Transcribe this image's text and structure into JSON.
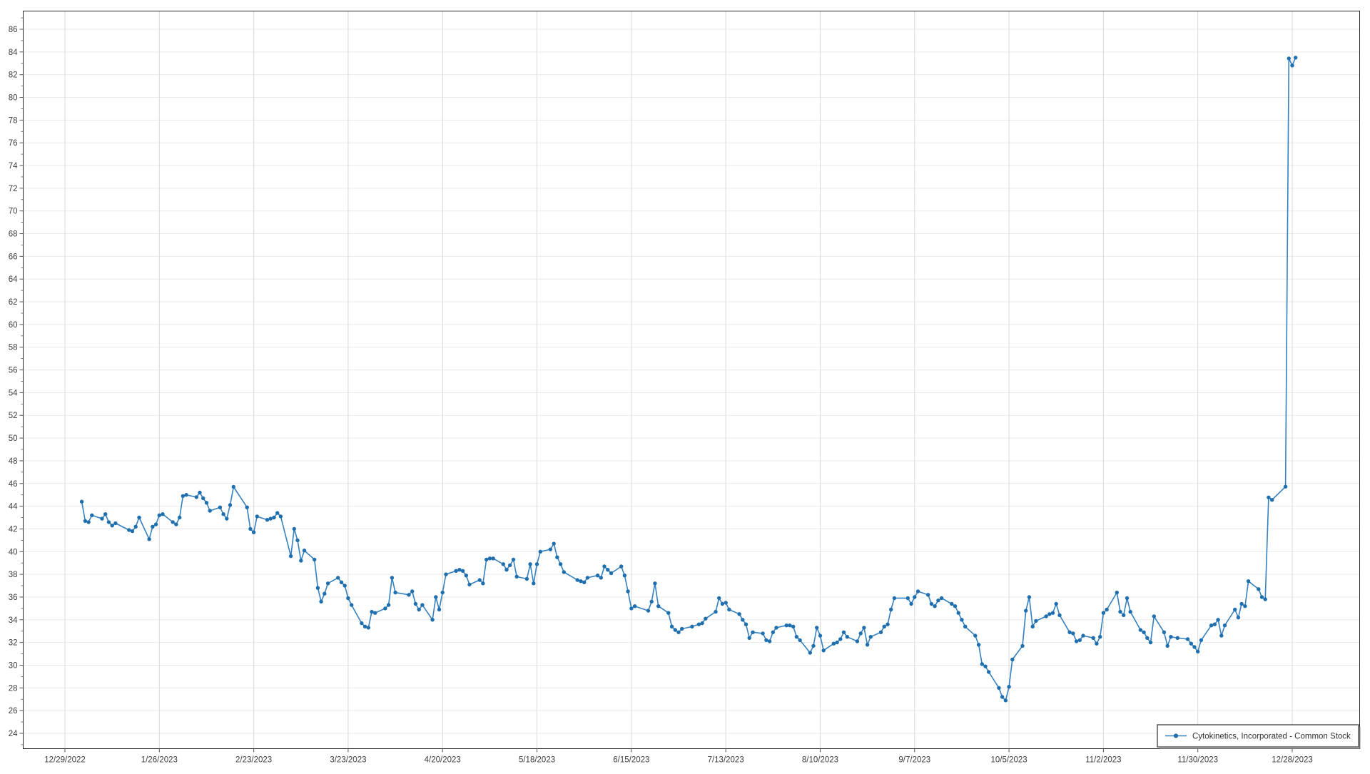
{
  "legend": {
    "label": "Cytokinetics, Incorporated - Common Stock"
  },
  "colors": {
    "line": "#3580bf",
    "marker": "#1f6fae",
    "grid_horizontal": "#e9e9e9",
    "grid_vertical": "#d9d9d9",
    "plot_border": "#262626",
    "tick_mark": "#555555",
    "tick_label": "#3d3d3d",
    "legend_border": "#58595b",
    "legend_background": "#ffffff"
  },
  "axes": {
    "y": {
      "tick_labels": [
        "24",
        "26",
        "28",
        "30",
        "32",
        "34",
        "36",
        "38",
        "40",
        "42",
        "44",
        "46",
        "48",
        "50",
        "52",
        "54",
        "56",
        "58",
        "60",
        "62",
        "64",
        "66",
        "68",
        "70",
        "72",
        "74",
        "76",
        "78",
        "80",
        "82",
        "84",
        "86"
      ],
      "min": 24,
      "max": 86,
      "step": 2,
      "domain_min": 22.6,
      "domain_max": 87.6
    },
    "x": {
      "tick_labels": [
        "12/29/2022",
        "1/26/2023",
        "2/23/2023",
        "3/23/2023",
        "4/20/2023",
        "5/18/2023",
        "6/15/2023",
        "7/13/2023",
        "8/10/2023",
        "9/7/2023",
        "10/5/2023",
        "11/2/2023",
        "11/30/2023",
        "12/28/2023"
      ]
    }
  },
  "chart_data": {
    "type": "line",
    "title": "",
    "xlabel": "",
    "ylabel": "",
    "grid": true,
    "legend_position": "bottom-right",
    "ylim": [
      22.6,
      87.6
    ],
    "x_tick_interval_days": 28,
    "series": [
      {
        "name": "Cytokinetics, Incorporated - Common Stock",
        "marker": "circle",
        "dates": [
          "2023-01-03",
          "2023-01-04",
          "2023-01-05",
          "2023-01-06",
          "2023-01-09",
          "2023-01-10",
          "2023-01-11",
          "2023-01-12",
          "2023-01-13",
          "2023-01-17",
          "2023-01-18",
          "2023-01-19",
          "2023-01-20",
          "2023-01-23",
          "2023-01-24",
          "2023-01-25",
          "2023-01-26",
          "2023-01-27",
          "2023-01-30",
          "2023-01-31",
          "2023-02-01",
          "2023-02-02",
          "2023-02-03",
          "2023-02-06",
          "2023-02-07",
          "2023-02-08",
          "2023-02-09",
          "2023-02-10",
          "2023-02-13",
          "2023-02-14",
          "2023-02-15",
          "2023-02-16",
          "2023-02-17",
          "2023-02-21",
          "2023-02-22",
          "2023-02-23",
          "2023-02-24",
          "2023-02-27",
          "2023-02-28",
          "2023-03-01",
          "2023-03-02",
          "2023-03-03",
          "2023-03-06",
          "2023-03-07",
          "2023-03-08",
          "2023-03-09",
          "2023-03-10",
          "2023-03-13",
          "2023-03-14",
          "2023-03-15",
          "2023-03-16",
          "2023-03-17",
          "2023-03-20",
          "2023-03-21",
          "2023-03-22",
          "2023-03-23",
          "2023-03-24",
          "2023-03-27",
          "2023-03-28",
          "2023-03-29",
          "2023-03-30",
          "2023-03-31",
          "2023-04-03",
          "2023-04-04",
          "2023-04-05",
          "2023-04-06",
          "2023-04-10",
          "2023-04-11",
          "2023-04-12",
          "2023-04-13",
          "2023-04-14",
          "2023-04-17",
          "2023-04-18",
          "2023-04-19",
          "2023-04-20",
          "2023-04-21",
          "2023-04-24",
          "2023-04-25",
          "2023-04-26",
          "2023-04-27",
          "2023-04-28",
          "2023-05-01",
          "2023-05-02",
          "2023-05-03",
          "2023-05-04",
          "2023-05-05",
          "2023-05-08",
          "2023-05-09",
          "2023-05-10",
          "2023-05-11",
          "2023-05-12",
          "2023-05-15",
          "2023-05-16",
          "2023-05-17",
          "2023-05-18",
          "2023-05-19",
          "2023-05-22",
          "2023-05-23",
          "2023-05-24",
          "2023-05-25",
          "2023-05-26",
          "2023-05-30",
          "2023-05-31",
          "2023-06-01",
          "2023-06-02",
          "2023-06-05",
          "2023-06-06",
          "2023-06-07",
          "2023-06-08",
          "2023-06-09",
          "2023-06-12",
          "2023-06-13",
          "2023-06-14",
          "2023-06-15",
          "2023-06-16",
          "2023-06-20",
          "2023-06-21",
          "2023-06-22",
          "2023-06-23",
          "2023-06-26",
          "2023-06-27",
          "2023-06-28",
          "2023-06-29",
          "2023-06-30",
          "2023-07-03",
          "2023-07-05",
          "2023-07-06",
          "2023-07-07",
          "2023-07-10",
          "2023-07-11",
          "2023-07-12",
          "2023-07-13",
          "2023-07-14",
          "2023-07-17",
          "2023-07-18",
          "2023-07-19",
          "2023-07-20",
          "2023-07-21",
          "2023-07-24",
          "2023-07-25",
          "2023-07-26",
          "2023-07-27",
          "2023-07-28",
          "2023-07-31",
          "2023-08-01",
          "2023-08-02",
          "2023-08-03",
          "2023-08-04",
          "2023-08-07",
          "2023-08-08",
          "2023-08-09",
          "2023-08-10",
          "2023-08-11",
          "2023-08-14",
          "2023-08-15",
          "2023-08-16",
          "2023-08-17",
          "2023-08-18",
          "2023-08-21",
          "2023-08-22",
          "2023-08-23",
          "2023-08-24",
          "2023-08-25",
          "2023-08-28",
          "2023-08-29",
          "2023-08-30",
          "2023-08-31",
          "2023-09-01",
          "2023-09-05",
          "2023-09-06",
          "2023-09-07",
          "2023-09-08",
          "2023-09-11",
          "2023-09-12",
          "2023-09-13",
          "2023-09-14",
          "2023-09-15",
          "2023-09-18",
          "2023-09-19",
          "2023-09-20",
          "2023-09-21",
          "2023-09-22",
          "2023-09-25",
          "2023-09-26",
          "2023-09-27",
          "2023-09-28",
          "2023-09-29",
          "2023-10-02",
          "2023-10-03",
          "2023-10-04",
          "2023-10-05",
          "2023-10-06",
          "2023-10-09",
          "2023-10-10",
          "2023-10-11",
          "2023-10-12",
          "2023-10-13",
          "2023-10-16",
          "2023-10-17",
          "2023-10-18",
          "2023-10-19",
          "2023-10-20",
          "2023-10-23",
          "2023-10-24",
          "2023-10-25",
          "2023-10-26",
          "2023-10-27",
          "2023-10-30",
          "2023-10-31",
          "2023-11-01",
          "2023-11-02",
          "2023-11-03",
          "2023-11-06",
          "2023-11-07",
          "2023-11-08",
          "2023-11-09",
          "2023-11-10",
          "2023-11-13",
          "2023-11-14",
          "2023-11-15",
          "2023-11-16",
          "2023-11-17",
          "2023-11-20",
          "2023-11-21",
          "2023-11-22",
          "2023-11-24",
          "2023-11-27",
          "2023-11-28",
          "2023-11-29",
          "2023-11-30",
          "2023-12-01",
          "2023-12-04",
          "2023-12-05",
          "2023-12-06",
          "2023-12-07",
          "2023-12-08",
          "2023-12-11",
          "2023-12-12",
          "2023-12-13",
          "2023-12-14",
          "2023-12-15",
          "2023-12-18",
          "2023-12-19",
          "2023-12-20",
          "2023-12-21",
          "2023-12-22",
          "2023-12-26",
          "2023-12-27",
          "2023-12-28",
          "2023-12-29"
        ],
        "values": [
          44.4,
          42.7,
          42.6,
          43.2,
          42.9,
          43.3,
          42.6,
          42.3,
          42.5,
          41.9,
          41.8,
          42.2,
          43.0,
          41.1,
          42.2,
          42.4,
          43.2,
          43.3,
          42.6,
          42.4,
          43.0,
          44.9,
          45.0,
          44.8,
          45.2,
          44.7,
          44.3,
          43.6,
          43.9,
          43.3,
          42.9,
          44.1,
          45.7,
          43.9,
          42.0,
          41.7,
          43.1,
          42.8,
          42.9,
          43.0,
          43.4,
          43.1,
          39.6,
          42.0,
          41.0,
          39.2,
          40.1,
          39.3,
          36.8,
          35.6,
          36.3,
          37.2,
          37.7,
          37.3,
          37.0,
          35.9,
          35.3,
          33.7,
          33.4,
          33.3,
          34.7,
          34.6,
          35.0,
          35.3,
          37.7,
          36.4,
          36.2,
          36.5,
          35.4,
          34.9,
          35.3,
          34.0,
          36.0,
          34.9,
          36.4,
          38.0,
          38.3,
          38.4,
          38.3,
          37.9,
          37.1,
          37.5,
          37.2,
          39.3,
          39.4,
          39.4,
          38.9,
          38.4,
          38.8,
          39.3,
          37.8,
          37.6,
          38.9,
          37.2,
          38.9,
          40.0,
          40.2,
          40.7,
          39.5,
          38.9,
          38.2,
          37.5,
          37.4,
          37.3,
          37.7,
          37.9,
          37.7,
          38.7,
          38.4,
          38.1,
          38.7,
          37.9,
          36.5,
          35.0,
          35.2,
          34.8,
          35.6,
          37.2,
          35.2,
          34.6,
          33.4,
          33.1,
          32.9,
          33.2,
          33.4,
          33.6,
          33.7,
          34.1,
          34.7,
          35.9,
          35.4,
          35.5,
          34.9,
          34.5,
          34.0,
          33.6,
          32.4,
          32.9,
          32.8,
          32.2,
          32.1,
          32.9,
          33.3,
          33.5,
          33.5,
          33.4,
          32.5,
          32.2,
          31.1,
          31.7,
          33.3,
          32.6,
          31.3,
          31.9,
          32.0,
          32.3,
          32.9,
          32.5,
          32.1,
          32.8,
          33.3,
          31.8,
          32.5,
          32.9,
          33.4,
          33.6,
          34.9,
          35.9,
          35.9,
          35.4,
          36.0,
          36.5,
          36.2,
          35.4,
          35.2,
          35.7,
          35.9,
          35.4,
          35.2,
          34.6,
          34.0,
          33.4,
          32.6,
          31.8,
          30.1,
          29.9,
          29.4,
          28.0,
          27.2,
          26.9,
          28.1,
          30.5,
          31.7,
          34.8,
          36.0,
          33.4,
          33.9,
          34.3,
          34.5,
          34.6,
          35.4,
          34.4,
          32.9,
          32.8,
          32.1,
          32.2,
          32.6,
          32.4,
          31.9,
          32.5,
          34.6,
          34.9,
          36.4,
          34.7,
          34.4,
          35.9,
          34.7,
          33.1,
          32.9,
          32.4,
          32.0,
          34.3,
          32.9,
          31.7,
          32.5,
          32.4,
          32.3,
          31.9,
          31.6,
          31.2,
          32.2,
          33.5,
          33.6,
          34.0,
          32.6,
          33.5,
          34.9,
          34.2,
          35.4,
          35.2,
          37.4,
          36.7,
          36.0,
          35.8,
          44.77,
          44.56,
          45.72,
          83.43,
          82.81,
          83.5
        ]
      }
    ]
  },
  "layout_anchor_dates": {
    "first_tick": "12/29/2022",
    "tick_spacing_days": 28
  }
}
